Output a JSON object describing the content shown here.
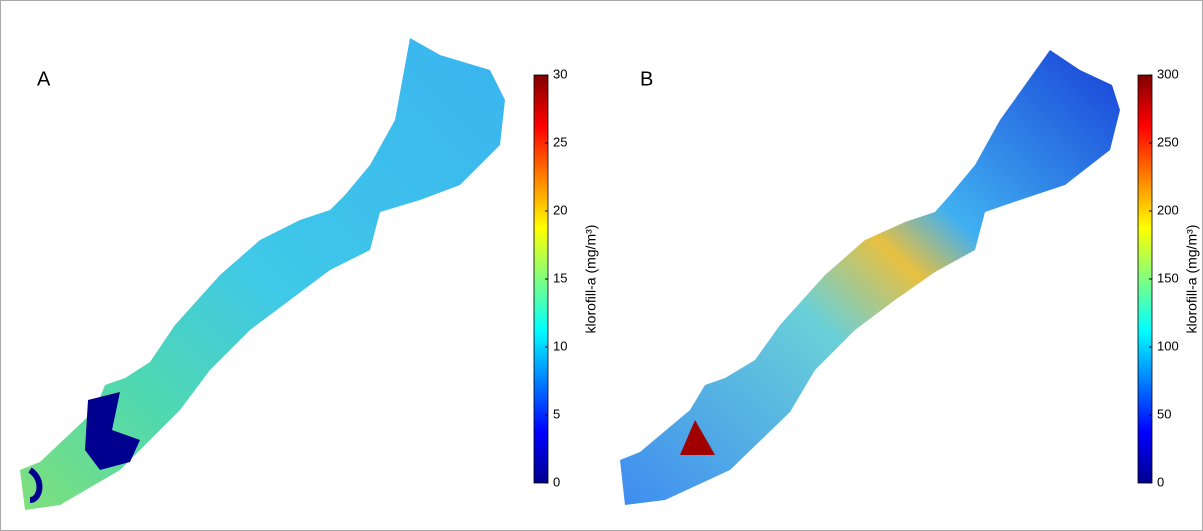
{
  "panels": [
    {
      "label": "A",
      "colorbar": {
        "label": "klorofill-a (mg/m³)",
        "lim": [
          0,
          30
        ],
        "ticks": [
          0,
          5,
          10,
          15,
          20,
          25,
          30
        ]
      }
    },
    {
      "label": "B",
      "colorbar": {
        "label": "klorofill-a (mg/m³)",
        "lim": [
          0,
          300
        ],
        "ticks": [
          0,
          50,
          100,
          150,
          200,
          250,
          300
        ]
      }
    }
  ]
}
